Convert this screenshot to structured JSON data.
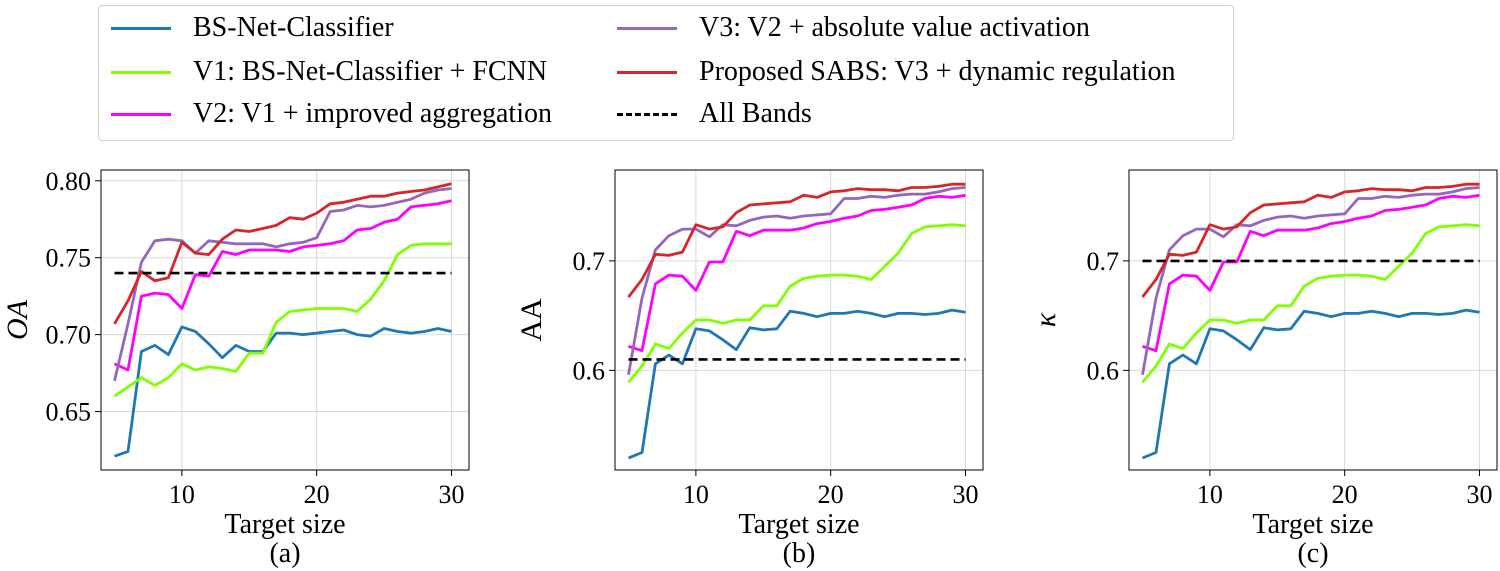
{
  "legend": {
    "items": [
      {
        "label": "BS-Net-Classifier",
        "color": "#1f77b4",
        "dash": false
      },
      {
        "label": "V1: BS-Net-Classifier + FCNN",
        "color": "#7fff00",
        "dash": false
      },
      {
        "label": "V2: V1 + improved aggregation",
        "color": "#ff00ff",
        "dash": false
      },
      {
        "label": "V3: V2 + absolute value activation",
        "color": "#9467bd",
        "dash": false
      },
      {
        "label": "Proposed SABS: V3 + dynamic regulation",
        "color": "#d62728",
        "dash": false
      },
      {
        "label": "All Bands",
        "color": "#000000",
        "dash": true
      }
    ]
  },
  "chart_data": [
    {
      "type": "line",
      "caption": "(a)",
      "xlabel": "Target size",
      "ylabel": "OA",
      "ylabel_italic": true,
      "xlim": [
        4,
        31.3
      ],
      "ylim": [
        0.612,
        0.807
      ],
      "xticks": [
        10,
        20,
        30
      ],
      "yticks": [
        0.65,
        0.7,
        0.75,
        0.8
      ],
      "ytick_labels": [
        "0.65",
        "0.70",
        "0.75",
        "0.80"
      ],
      "grid": true,
      "x": [
        5,
        6,
        7,
        8,
        9,
        10,
        11,
        12,
        13,
        14,
        15,
        16,
        17,
        18,
        19,
        20,
        21,
        22,
        23,
        24,
        25,
        26,
        27,
        28,
        29,
        30
      ],
      "series": [
        {
          "name": "BS-Net-Classifier",
          "values": [
            0.621,
            0.624,
            0.689,
            0.693,
            0.687,
            0.705,
            0.702,
            0.694,
            0.685,
            0.693,
            0.689,
            0.689,
            0.701,
            0.701,
            0.7,
            0.701,
            0.702,
            0.703,
            0.7,
            0.699,
            0.704,
            0.702,
            0.701,
            0.702,
            0.704,
            0.702
          ]
        },
        {
          "name": "V1: BS-Net-Classifier + FCNN",
          "values": [
            0.66,
            0.666,
            0.672,
            0.667,
            0.672,
            0.681,
            0.677,
            0.679,
            0.678,
            0.676,
            0.688,
            0.688,
            0.708,
            0.715,
            0.716,
            0.717,
            0.717,
            0.717,
            0.715,
            0.723,
            0.735,
            0.752,
            0.758,
            0.759,
            0.759,
            0.759
          ]
        },
        {
          "name": "V2: V1 + improved aggregation",
          "values": [
            0.681,
            0.677,
            0.725,
            0.727,
            0.726,
            0.717,
            0.739,
            0.738,
            0.754,
            0.752,
            0.755,
            0.755,
            0.755,
            0.754,
            0.757,
            0.758,
            0.759,
            0.761,
            0.768,
            0.769,
            0.773,
            0.775,
            0.783,
            0.784,
            0.785,
            0.787
          ]
        },
        {
          "name": "V3: V2 + absolute value activation",
          "values": [
            0.67,
            0.707,
            0.747,
            0.761,
            0.762,
            0.761,
            0.753,
            0.761,
            0.76,
            0.759,
            0.759,
            0.759,
            0.757,
            0.759,
            0.76,
            0.763,
            0.78,
            0.781,
            0.784,
            0.783,
            0.784,
            0.786,
            0.788,
            0.792,
            0.794,
            0.795
          ]
        },
        {
          "name": "Proposed SABS: V3 + dynamic regulation",
          "values": [
            0.707,
            0.722,
            0.741,
            0.735,
            0.737,
            0.76,
            0.753,
            0.752,
            0.762,
            0.768,
            0.767,
            0.769,
            0.771,
            0.776,
            0.775,
            0.779,
            0.785,
            0.786,
            0.788,
            0.79,
            0.79,
            0.792,
            0.793,
            0.794,
            0.796,
            0.798
          ]
        },
        {
          "name": "All Bands",
          "values": [
            0.74,
            0.74,
            0.74,
            0.74,
            0.74,
            0.74,
            0.74,
            0.74,
            0.74,
            0.74,
            0.74,
            0.74,
            0.74,
            0.74,
            0.74,
            0.74,
            0.74,
            0.74,
            0.74,
            0.74,
            0.74,
            0.74,
            0.74,
            0.74,
            0.74,
            0.74
          ]
        }
      ]
    },
    {
      "type": "line",
      "caption": "(b)",
      "xlabel": "Target size",
      "ylabel": "AA",
      "ylabel_italic": false,
      "xlim": [
        4,
        31.3
      ],
      "ylim": [
        0.509,
        0.783
      ],
      "xticks": [
        10,
        20,
        30
      ],
      "yticks": [
        0.6,
        0.7
      ],
      "ytick_labels": [
        "0.6",
        "0.7"
      ],
      "grid": true,
      "x": [
        5,
        6,
        7,
        8,
        9,
        10,
        11,
        12,
        13,
        14,
        15,
        16,
        17,
        18,
        19,
        20,
        21,
        22,
        23,
        24,
        25,
        26,
        27,
        28,
        29,
        30
      ],
      "series": [
        {
          "name": "BS-Net-Classifier",
          "values": [
            0.52,
            0.525,
            0.606,
            0.614,
            0.606,
            0.638,
            0.636,
            0.628,
            0.619,
            0.639,
            0.637,
            0.638,
            0.654,
            0.652,
            0.649,
            0.652,
            0.652,
            0.654,
            0.652,
            0.649,
            0.652,
            0.652,
            0.651,
            0.652,
            0.655,
            0.653
          ]
        },
        {
          "name": "V1: BS-Net-Classifier + FCNN",
          "values": [
            0.589,
            0.604,
            0.624,
            0.62,
            0.634,
            0.646,
            0.646,
            0.643,
            0.646,
            0.646,
            0.659,
            0.659,
            0.677,
            0.684,
            0.686,
            0.687,
            0.687,
            0.686,
            0.683,
            0.695,
            0.707,
            0.725,
            0.731,
            0.732,
            0.733,
            0.732
          ]
        },
        {
          "name": "V2: V1 + improved aggregation",
          "values": [
            0.622,
            0.618,
            0.679,
            0.687,
            0.686,
            0.673,
            0.699,
            0.699,
            0.727,
            0.723,
            0.728,
            0.728,
            0.728,
            0.73,
            0.734,
            0.736,
            0.739,
            0.741,
            0.746,
            0.747,
            0.749,
            0.751,
            0.757,
            0.759,
            0.758,
            0.76
          ]
        },
        {
          "name": "V3: V2 + absolute value activation",
          "values": [
            0.596,
            0.666,
            0.71,
            0.723,
            0.729,
            0.729,
            0.722,
            0.733,
            0.732,
            0.737,
            0.74,
            0.741,
            0.739,
            0.741,
            0.742,
            0.743,
            0.757,
            0.757,
            0.759,
            0.758,
            0.76,
            0.761,
            0.761,
            0.763,
            0.766,
            0.767
          ]
        },
        {
          "name": "Proposed SABS: V3 + dynamic regulation",
          "values": [
            0.667,
            0.683,
            0.706,
            0.705,
            0.708,
            0.733,
            0.729,
            0.731,
            0.744,
            0.751,
            0.752,
            0.753,
            0.754,
            0.76,
            0.758,
            0.763,
            0.764,
            0.766,
            0.765,
            0.765,
            0.764,
            0.767,
            0.767,
            0.768,
            0.77,
            0.77
          ]
        },
        {
          "name": "All Bands",
          "values": [
            0.61,
            0.61,
            0.61,
            0.61,
            0.61,
            0.61,
            0.61,
            0.61,
            0.61,
            0.61,
            0.61,
            0.61,
            0.61,
            0.61,
            0.61,
            0.61,
            0.61,
            0.61,
            0.61,
            0.61,
            0.61,
            0.61,
            0.61,
            0.61,
            0.61,
            0.61
          ]
        }
      ]
    },
    {
      "type": "line",
      "caption": "(c)",
      "xlabel": "Target size",
      "ylabel": "κ",
      "ylabel_italic": true,
      "xlim": [
        4,
        31.3
      ],
      "ylim": [
        0.509,
        0.783
      ],
      "xticks": [
        10,
        20,
        30
      ],
      "yticks": [
        0.6,
        0.7
      ],
      "ytick_labels": [
        "0.6",
        "0.7"
      ],
      "grid": true,
      "x": [
        5,
        6,
        7,
        8,
        9,
        10,
        11,
        12,
        13,
        14,
        15,
        16,
        17,
        18,
        19,
        20,
        21,
        22,
        23,
        24,
        25,
        26,
        27,
        28,
        29,
        30
      ],
      "series": [
        {
          "name": "BS-Net-Classifier",
          "values": [
            0.52,
            0.525,
            0.606,
            0.614,
            0.606,
            0.638,
            0.636,
            0.628,
            0.619,
            0.639,
            0.637,
            0.638,
            0.654,
            0.652,
            0.649,
            0.652,
            0.652,
            0.654,
            0.652,
            0.649,
            0.652,
            0.652,
            0.651,
            0.652,
            0.655,
            0.653
          ]
        },
        {
          "name": "V1: BS-Net-Classifier + FCNN",
          "values": [
            0.589,
            0.604,
            0.624,
            0.62,
            0.634,
            0.646,
            0.646,
            0.643,
            0.646,
            0.646,
            0.659,
            0.659,
            0.677,
            0.684,
            0.686,
            0.687,
            0.687,
            0.686,
            0.683,
            0.695,
            0.707,
            0.725,
            0.731,
            0.732,
            0.733,
            0.732
          ]
        },
        {
          "name": "V2: V1 + improved aggregation",
          "values": [
            0.622,
            0.618,
            0.679,
            0.687,
            0.686,
            0.673,
            0.699,
            0.699,
            0.727,
            0.723,
            0.728,
            0.728,
            0.728,
            0.73,
            0.734,
            0.736,
            0.739,
            0.741,
            0.746,
            0.747,
            0.749,
            0.751,
            0.757,
            0.759,
            0.758,
            0.76
          ]
        },
        {
          "name": "V3: V2 + absolute value activation",
          "values": [
            0.596,
            0.666,
            0.71,
            0.723,
            0.729,
            0.729,
            0.722,
            0.733,
            0.732,
            0.737,
            0.74,
            0.741,
            0.739,
            0.741,
            0.742,
            0.743,
            0.757,
            0.757,
            0.759,
            0.758,
            0.76,
            0.761,
            0.761,
            0.763,
            0.766,
            0.767
          ]
        },
        {
          "name": "Proposed SABS: V3 + dynamic regulation",
          "values": [
            0.667,
            0.683,
            0.706,
            0.705,
            0.708,
            0.733,
            0.729,
            0.731,
            0.744,
            0.751,
            0.752,
            0.753,
            0.754,
            0.76,
            0.758,
            0.763,
            0.764,
            0.766,
            0.765,
            0.765,
            0.764,
            0.767,
            0.767,
            0.768,
            0.77,
            0.77
          ]
        },
        {
          "name": "All Bands",
          "values": [
            0.7,
            0.7,
            0.7,
            0.7,
            0.7,
            0.7,
            0.7,
            0.7,
            0.7,
            0.7,
            0.7,
            0.7,
            0.7,
            0.7,
            0.7,
            0.7,
            0.7,
            0.7,
            0.7,
            0.7,
            0.7,
            0.7,
            0.7,
            0.7,
            0.7,
            0.7
          ]
        }
      ]
    }
  ]
}
